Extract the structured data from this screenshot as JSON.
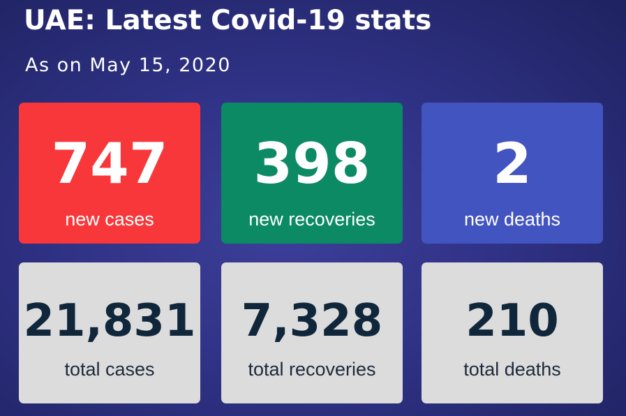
{
  "header": {
    "title": "UAE: Latest Covid-19 stats",
    "subtitle": "As on May 15, 2020"
  },
  "daily": [
    {
      "value": "747",
      "label": "new cases",
      "color": "#f8373a"
    },
    {
      "value": "398",
      "label": "new recoveries",
      "color": "#0b8a63"
    },
    {
      "value": "2",
      "label": "new deaths",
      "color": "#4254c0"
    }
  ],
  "totals": [
    {
      "value": "21,831",
      "label": "total cases"
    },
    {
      "value": "7,328",
      "label": "total recoveries"
    },
    {
      "value": "210",
      "label": "total deaths"
    }
  ],
  "colors": {
    "background": "#2f3285",
    "totals_card": "#dcdcdc",
    "totals_text": "#10263a"
  }
}
